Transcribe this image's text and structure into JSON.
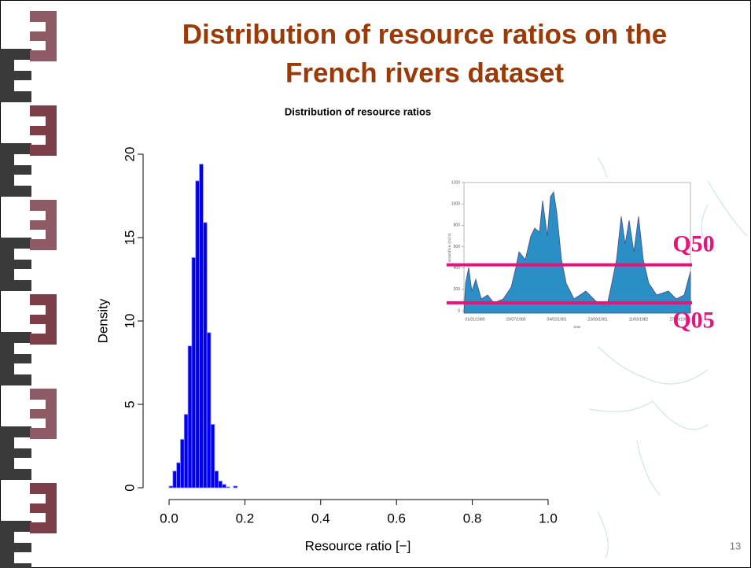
{
  "slide": {
    "title": [
      "Distribution of resource ratios on the",
      "French rivers dataset"
    ],
    "page_number": "13"
  },
  "chart_data": {
    "type": "histogram",
    "title": "Distribution of resource ratios",
    "x_label": "Resource ratio [−]",
    "y_label": "Density",
    "bins": [
      0,
      0.01,
      0.02,
      0.03,
      0.04,
      0.05,
      0.06,
      0.07,
      0.08,
      0.09,
      0.1,
      0.11,
      0.12,
      0.13,
      0.14,
      0.15,
      0.16,
      0.17,
      0.18
    ],
    "values": [
      0.1,
      1.0,
      1.5,
      2.9,
      4.4,
      8.5,
      13.8,
      18.4,
      19.4,
      15.9,
      9.3,
      3.8,
      1.0,
      0.4,
      0.2,
      0.05,
      0.0,
      0.1
    ],
    "color": "#0000ee",
    "xlim": [
      0,
      1
    ],
    "xticks": [
      {
        "value": 0,
        "label": "0.0"
      },
      0.2,
      0.4,
      0.6,
      0.8,
      {
        "value": 1,
        "label": "1.0"
      }
    ],
    "ylim": [
      0,
      20
    ],
    "yticks": [
      0,
      5,
      10,
      15,
      20
    ]
  },
  "inset": {
    "y_label": "streamflow (m3/s)",
    "x_label": "time",
    "ylim": [
      0,
      1200
    ],
    "yticks": [
      0,
      200,
      400,
      600,
      800,
      1000,
      1200
    ],
    "xticks": [
      "01/01/1980",
      "15/07/1980",
      "04/02/1981",
      "23/08/1981",
      "11/03/1982",
      "27/09/1982"
    ],
    "thresholds": [
      {
        "label": "Q50",
        "value": 430
      },
      {
        "label": "Q05",
        "value": 75
      }
    ],
    "threshold_color": "#e8137a"
  }
}
